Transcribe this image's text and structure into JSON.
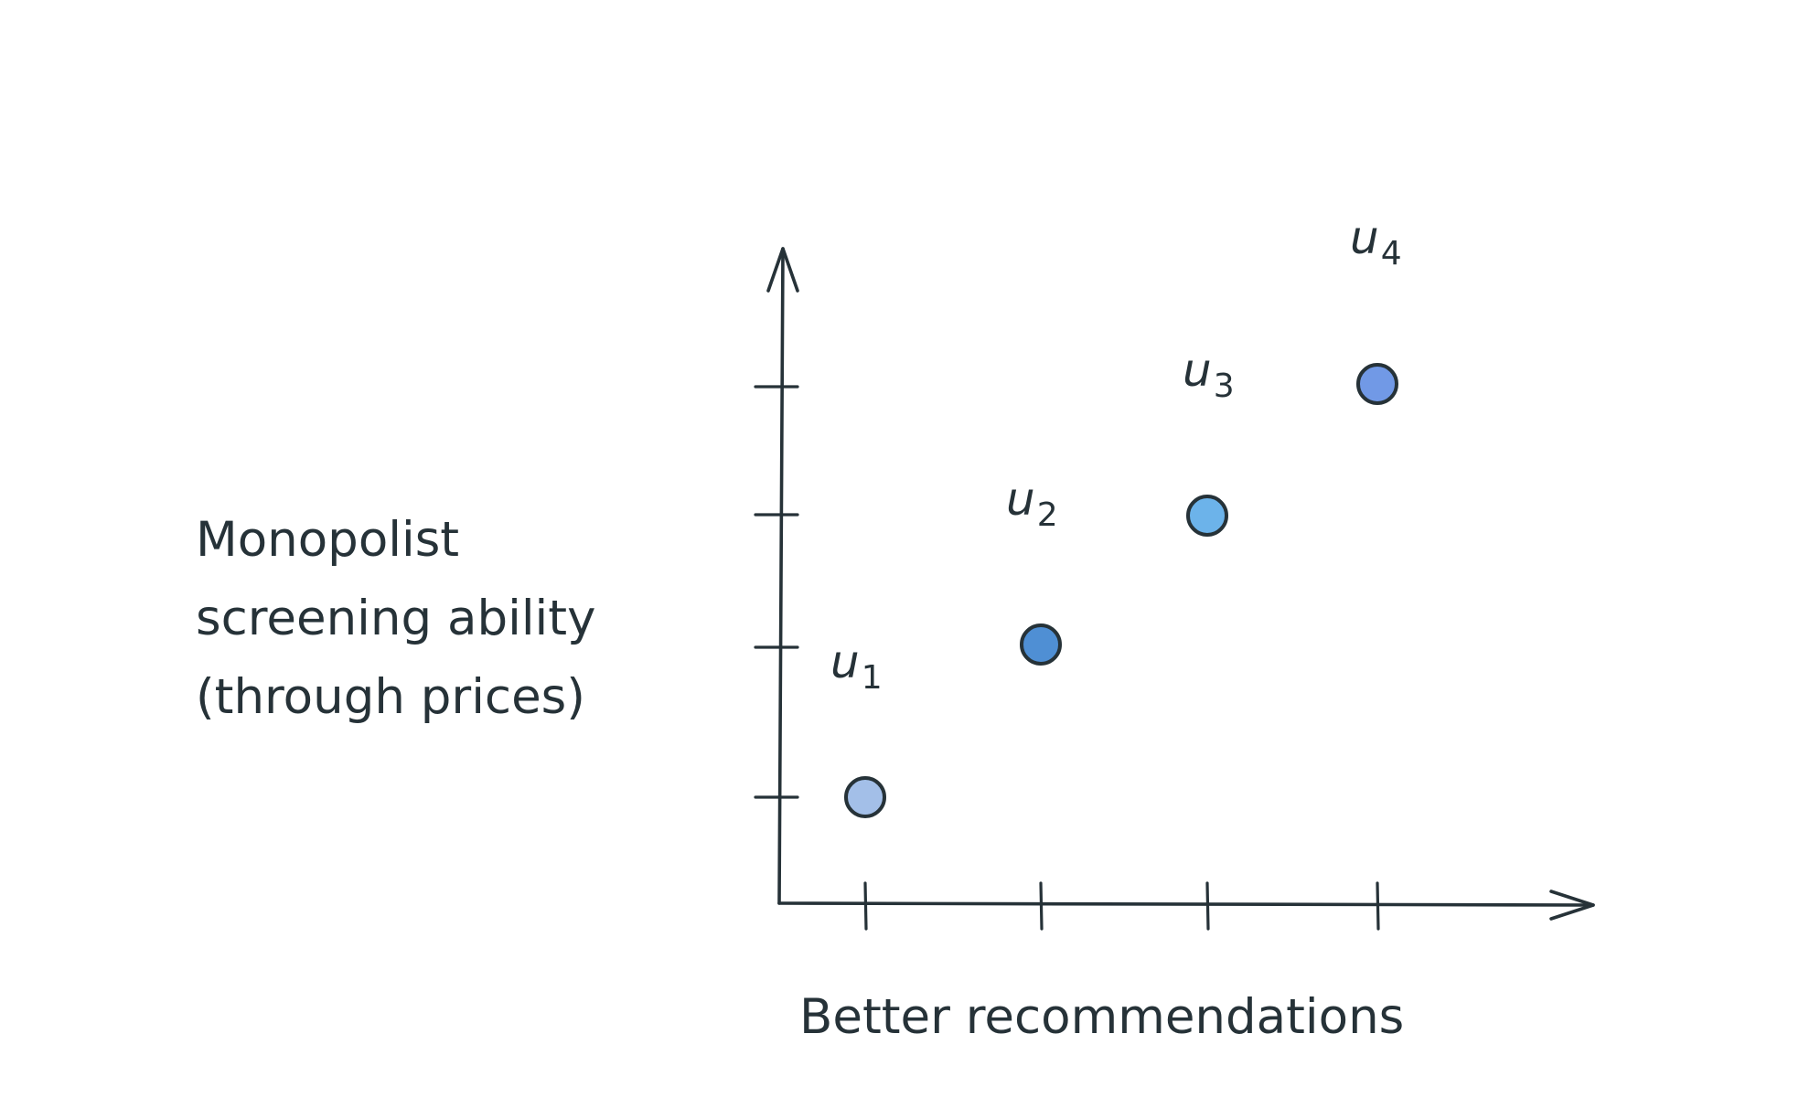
{
  "y_axis_label_lines": [
    "Monopolist",
    "screening ability",
    "(through prices)"
  ],
  "x_axis_label": "Better recommendations",
  "points": [
    {
      "label": "u",
      "sub": "1",
      "x": 1,
      "y": 1,
      "color": "#a3bfe8"
    },
    {
      "label": "u",
      "sub": "2",
      "x": 2,
      "y": 2,
      "color": "#4f8fd4"
    },
    {
      "label": "u",
      "sub": "3",
      "x": 3,
      "y": 3,
      "color": "#6cb3ea"
    },
    {
      "label": "u",
      "sub": "4",
      "x": 4,
      "y": 4,
      "color": "#7199e6"
    }
  ],
  "x_ticks": [
    1,
    2,
    3,
    4
  ],
  "y_ticks": [
    1,
    2,
    3,
    4
  ],
  "line_color": "#263238"
}
